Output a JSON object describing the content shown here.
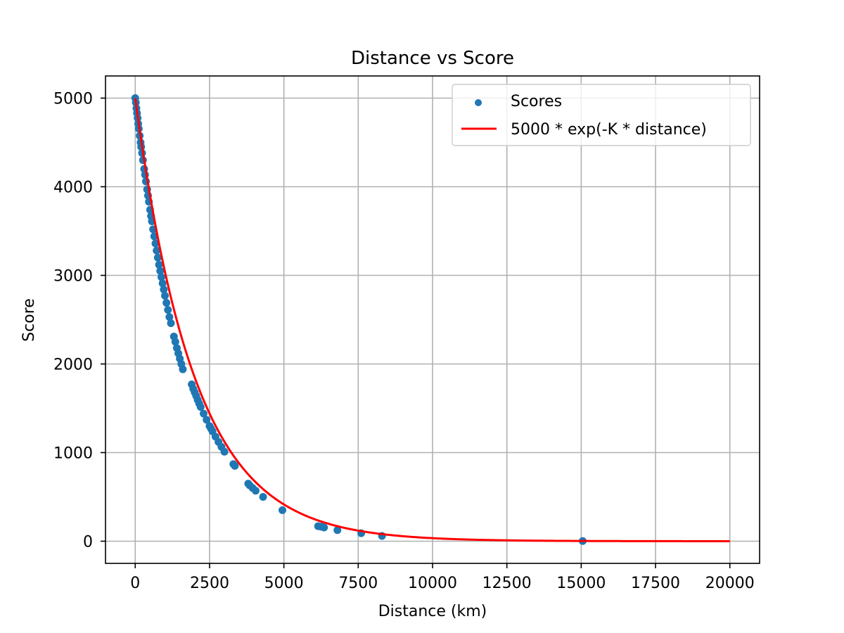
{
  "chart_data": {
    "type": "scatter",
    "title": "Distance vs Score",
    "xlabel": "Distance (km)",
    "ylabel": "Score",
    "xlim": [
      -1000,
      21000
    ],
    "ylim": [
      -250,
      5250
    ],
    "xticks": [
      0,
      2500,
      5000,
      7500,
      10000,
      12500,
      15000,
      17500,
      20000
    ],
    "yticks": [
      0,
      1000,
      2000,
      3000,
      4000,
      5000
    ],
    "grid": true,
    "legend_position": "upper right",
    "series": [
      {
        "name": "Scores",
        "kind": "scatter",
        "color": "#1f77b4",
        "x": [
          0,
          20,
          40,
          60,
          80,
          100,
          120,
          150,
          180,
          200,
          230,
          260,
          300,
          330,
          360,
          400,
          430,
          460,
          500,
          530,
          560,
          600,
          640,
          680,
          720,
          760,
          800,
          840,
          880,
          920,
          960,
          1000,
          1050,
          1100,
          1150,
          1200,
          1300,
          1350,
          1400,
          1450,
          1500,
          1550,
          1600,
          1900,
          1950,
          2000,
          2050,
          2100,
          2150,
          2200,
          2300,
          2400,
          2500,
          2550,
          2600,
          2700,
          2800,
          2900,
          3000,
          3300,
          3350,
          3800,
          3850,
          3950,
          4050,
          4300,
          4950,
          6150,
          6250,
          6350,
          6800,
          7600,
          8300,
          15050
        ],
        "y": [
          5000,
          4950,
          4885,
          4830,
          4775,
          4710,
          4655,
          4575,
          4500,
          4450,
          4380,
          4300,
          4200,
          4135,
          4060,
          3970,
          3900,
          3830,
          3740,
          3670,
          3610,
          3520,
          3440,
          3360,
          3280,
          3200,
          3120,
          3050,
          2980,
          2910,
          2840,
          2770,
          2690,
          2610,
          2530,
          2460,
          2310,
          2250,
          2180,
          2120,
          2060,
          2000,
          1940,
          1770,
          1720,
          1680,
          1640,
          1595,
          1555,
          1515,
          1440,
          1370,
          1300,
          1270,
          1240,
          1180,
          1120,
          1065,
          1010,
          870,
          850,
          650,
          630,
          600,
          570,
          500,
          350,
          170,
          165,
          155,
          125,
          90,
          60,
          2
        ]
      },
      {
        "name": "5000 * exp(-K * distance)",
        "kind": "line",
        "color": "#ff0000",
        "formula": "5000 * exp(-K * distance)",
        "K": 0.0004977,
        "x_start": 0,
        "x_end": 20000
      }
    ]
  }
}
